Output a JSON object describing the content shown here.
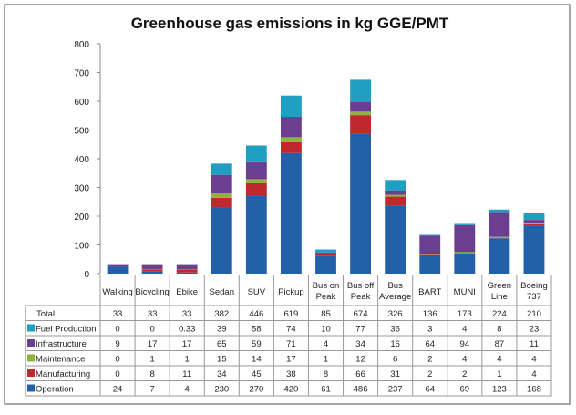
{
  "chart_data": {
    "type": "bar",
    "stacked": true,
    "title": "Greenhouse gas emissions in kg GGE/PMT",
    "xlabel": "",
    "ylabel": "",
    "ylim": [
      0,
      800
    ],
    "yticks": [
      0,
      100,
      200,
      300,
      400,
      500,
      600,
      700,
      800
    ],
    "grid": false,
    "legend": "table-left",
    "categories": [
      [
        "Walking"
      ],
      [
        "Bicycling"
      ],
      [
        "Ebike"
      ],
      [
        "Sedan"
      ],
      [
        "SUV"
      ],
      [
        "Pickup"
      ],
      [
        "Bus on",
        "Peak"
      ],
      [
        "Bus off",
        "Peak"
      ],
      [
        "Bus",
        "Average"
      ],
      [
        "BART"
      ],
      [
        "MUNI"
      ],
      [
        "Green",
        "Line"
      ],
      [
        "Boeing",
        "737"
      ]
    ],
    "total_label": "Total",
    "totals": [
      "33",
      "33",
      "33",
      "382",
      "446",
      "619",
      "85",
      "674",
      "326",
      "136",
      "173",
      "224",
      "210"
    ],
    "series": [
      {
        "name": "Operation",
        "color": "#2360a8",
        "values": [
          24,
          7,
          4,
          230,
          270,
          420,
          61,
          486,
          237,
          64,
          69,
          123,
          168
        ]
      },
      {
        "name": "Manufacturing",
        "color": "#c0282d",
        "values": [
          0,
          8,
          11,
          34,
          45,
          38,
          8,
          66,
          31,
          2,
          2,
          1,
          4
        ]
      },
      {
        "name": "Maintenance",
        "color": "#8cb43f",
        "values": [
          0,
          1,
          1,
          15,
          14,
          17,
          1,
          12,
          6,
          2,
          4,
          4,
          4
        ]
      },
      {
        "name": "Infrastructure",
        "color": "#6b3e91",
        "values": [
          9,
          17,
          17,
          65,
          59,
          71,
          4,
          34,
          16,
          64,
          94,
          87,
          11
        ]
      },
      {
        "name": "Fuel Production",
        "color": "#1fa0c2",
        "values": [
          0,
          0,
          "0.33",
          39,
          58,
          74,
          10,
          77,
          36,
          3,
          4,
          8,
          23
        ]
      }
    ]
  }
}
